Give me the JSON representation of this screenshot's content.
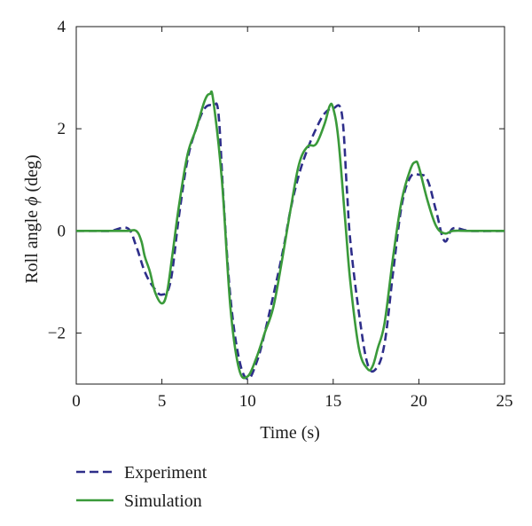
{
  "chart_data": {
    "type": "line",
    "xlabel": "Time (s)",
    "ylabel_prefix": "Roll angle ",
    "ylabel_symbol": "ϕ",
    "ylabel_suffix": " (deg)",
    "xlim": [
      0,
      25
    ],
    "ylim": [
      -3,
      4
    ],
    "xticks": [
      0,
      5,
      10,
      15,
      20,
      25
    ],
    "yticks": [
      -2,
      0,
      2,
      4
    ],
    "xtick_labels": [
      "0",
      "5",
      "10",
      "15",
      "20",
      "25"
    ],
    "ytick_labels": [
      "−2",
      "0",
      "2",
      "4"
    ],
    "grid": false,
    "legend_position": "below",
    "series": [
      {
        "name": "Experiment",
        "color": "#2e2e8a",
        "style": "dashed",
        "x": [
          0,
          1,
          2,
          3,
          3.5,
          4,
          4.5,
          5,
          5.5,
          6,
          6.5,
          7,
          7.5,
          8,
          8.3,
          8.6,
          9,
          9.5,
          10,
          10.5,
          11,
          12,
          12.5,
          13,
          13.5,
          14,
          14.5,
          15,
          15.5,
          15.8,
          16,
          16.5,
          17,
          17.5,
          18,
          18.5,
          19,
          19.5,
          20,
          20.5,
          21,
          21.5,
          22,
          23,
          25
        ],
        "y": [
          0,
          0,
          0,
          0.05,
          -0.3,
          -0.8,
          -1.1,
          -1.25,
          -1.0,
          0.3,
          1.4,
          2.0,
          2.4,
          2.45,
          2.3,
          0.6,
          -1.3,
          -2.5,
          -2.9,
          -2.6,
          -2.0,
          -0.5,
          0.4,
          1.1,
          1.6,
          2.0,
          2.3,
          2.4,
          2.3,
          0.8,
          -0.2,
          -1.6,
          -2.6,
          -2.7,
          -2.2,
          -0.8,
          0.5,
          1.05,
          1.1,
          1.0,
          0.4,
          -0.2,
          0.05,
          0,
          0
        ]
      },
      {
        "name": "Simulation",
        "color": "#3a9a3a",
        "style": "solid",
        "x": [
          0,
          1,
          2,
          3,
          3.5,
          3.8,
          4,
          4.3,
          4.6,
          5,
          5.3,
          5.6,
          6,
          6.5,
          7,
          7.5,
          7.8,
          8,
          8.5,
          9,
          9.5,
          10,
          10.5,
          11,
          11.5,
          12,
          12.5,
          13,
          13.5,
          14,
          14.5,
          14.8,
          15,
          15.3,
          15.7,
          16,
          16.5,
          17,
          17.3,
          17.6,
          18,
          18.5,
          19,
          19.5,
          19.8,
          20,
          20.5,
          21,
          21.5,
          22,
          23,
          25
        ],
        "y": [
          0,
          0,
          0,
          0,
          0,
          -0.2,
          -0.5,
          -0.8,
          -1.2,
          -1.42,
          -1.2,
          -0.5,
          0.5,
          1.5,
          2.0,
          2.55,
          2.68,
          2.55,
          1.0,
          -1.5,
          -2.7,
          -2.85,
          -2.5,
          -2.0,
          -1.5,
          -0.6,
          0.4,
          1.3,
          1.65,
          1.7,
          2.1,
          2.45,
          2.4,
          1.8,
          0.2,
          -1.0,
          -2.3,
          -2.7,
          -2.65,
          -2.3,
          -1.8,
          -0.5,
          0.6,
          1.2,
          1.35,
          1.25,
          0.6,
          0.1,
          -0.05,
          0,
          0,
          0
        ]
      }
    ]
  }
}
